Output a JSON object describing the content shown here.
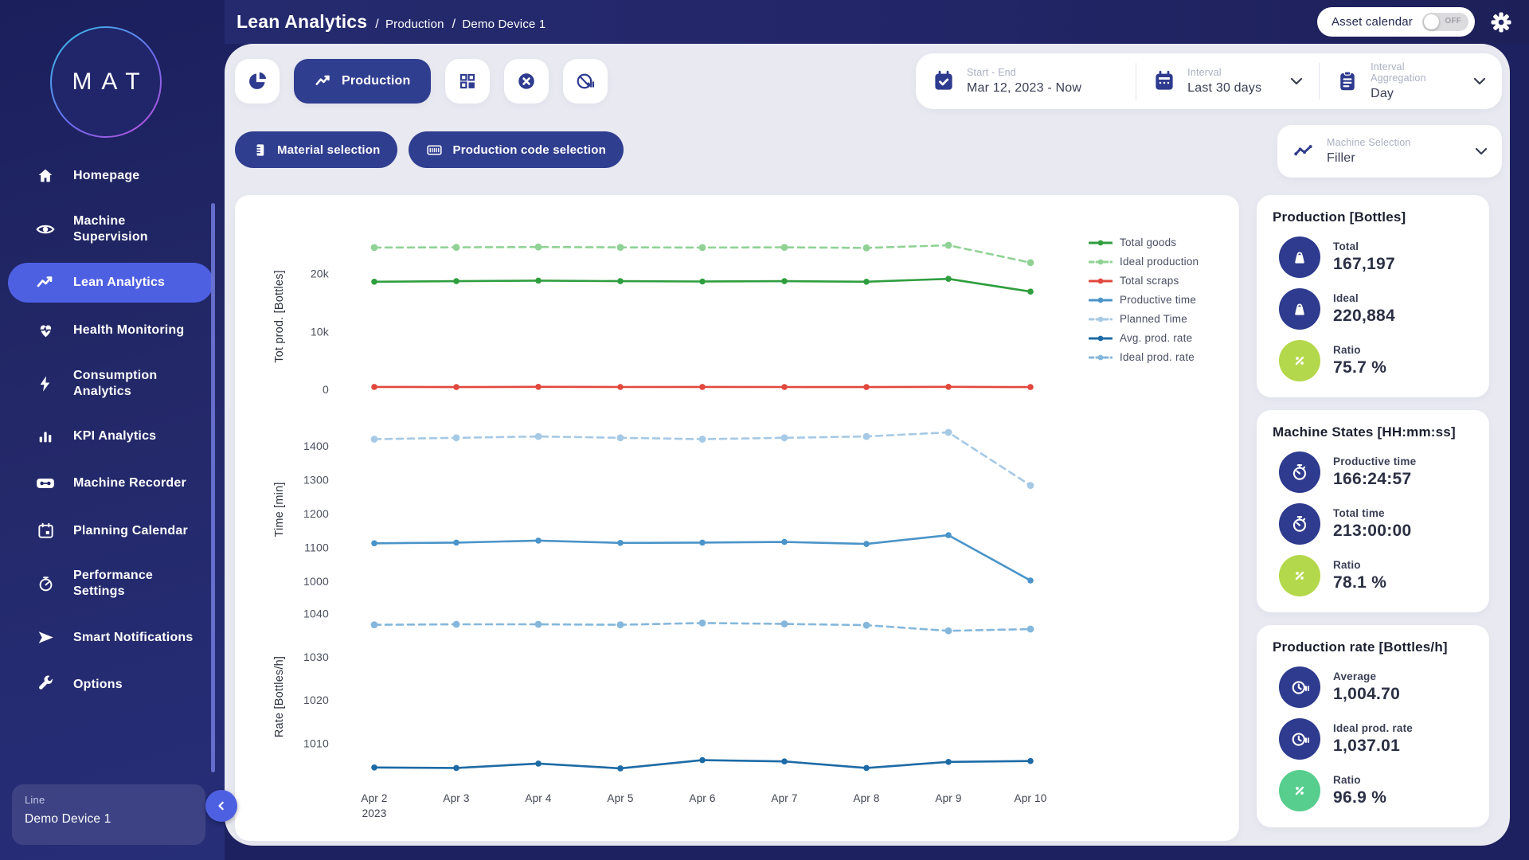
{
  "topbar": {
    "title": "Lean Analytics",
    "breadcrumb": {
      "level1": "Production",
      "level2": "Demo Device 1",
      "separator": "/"
    },
    "asset_calendar": {
      "label": "Asset calendar",
      "state": "OFF"
    }
  },
  "toolbar": {
    "production_label": "Production"
  },
  "filters": {
    "start_end": {
      "label": "Start - End",
      "value": "Mar 12, 2023 - Now"
    },
    "interval": {
      "label": "Interval",
      "value": "Last 30 days"
    },
    "aggregation": {
      "label": "Interval Aggregation",
      "value": "Day"
    },
    "material_label": "Material selection",
    "production_code_label": "Production code selection",
    "machine_selection": {
      "label": "Machine Selection",
      "value": "Filler"
    }
  },
  "sidebar": {
    "brand": "MAT",
    "items": [
      {
        "label": "Homepage",
        "active": false
      },
      {
        "label": "Machine Supervision",
        "active": false
      },
      {
        "label": "Lean Analytics",
        "active": true
      },
      {
        "label": "Health Monitoring",
        "active": false
      },
      {
        "label": "Consumption Analytics",
        "active": false
      },
      {
        "label": "KPI Analytics",
        "active": false
      },
      {
        "label": "Machine Recorder",
        "active": false
      },
      {
        "label": "Planning Calendar",
        "active": false
      },
      {
        "label": "Performance Settings",
        "active": false
      },
      {
        "label": "Smart Notifications",
        "active": false
      },
      {
        "label": "Options",
        "active": false
      }
    ],
    "device": {
      "label": "Line",
      "value": "Demo Device 1"
    }
  },
  "summary_cards": [
    {
      "title": "Production [Bottles]",
      "rows": [
        {
          "icon": "weight",
          "label": "Total",
          "value": "167,197",
          "circle": "navy"
        },
        {
          "icon": "weight",
          "label": "Ideal",
          "value": "220,884",
          "circle": "navy"
        },
        {
          "icon": "percent",
          "label": "Ratio",
          "value": "75.7 %",
          "circle": "lime"
        }
      ]
    },
    {
      "title": "Machine States [HH:mm:ss]",
      "rows": [
        {
          "icon": "stopwatch",
          "label": "Productive time",
          "value": "166:24:57",
          "circle": "navy"
        },
        {
          "icon": "stopwatch",
          "label": "Total time",
          "value": "213:00:00",
          "circle": "navy"
        },
        {
          "icon": "percent",
          "label": "Ratio",
          "value": "78.1 %",
          "circle": "lime"
        }
      ]
    },
    {
      "title": "Production rate [Bottles/h]",
      "rows": [
        {
          "icon": "clock-pause",
          "label": "Average",
          "value": "1,004.70",
          "circle": "navy"
        },
        {
          "icon": "clock-pause",
          "label": "Ideal prod. rate",
          "value": "1,037.01",
          "circle": "navy"
        },
        {
          "icon": "percent",
          "label": "Ratio",
          "value": "96.9 %",
          "circle": "teal"
        }
      ]
    }
  ],
  "colors": {
    "navy": "#2e3b8e",
    "accent": "#4e60e2",
    "lime": "#b4d84b",
    "teal": "#57cd8e",
    "content_bg": "#e9eaf1"
  },
  "chart_data": {
    "type": "line",
    "x_labels": [
      "Apr 2",
      "Apr 3",
      "Apr 4",
      "Apr 5",
      "Apr 6",
      "Apr 7",
      "Apr 8",
      "Apr 9",
      "Apr 10"
    ],
    "x_sublabel": "2023",
    "grid": false,
    "legend_position": "top-right",
    "legend": [
      "Total goods",
      "Ideal production",
      "Total scraps",
      "Productive time",
      "Planned Time",
      "Avg. prod. rate",
      "Ideal prod. rate"
    ],
    "panels": [
      {
        "ylabel": "Tot prod. [Bottles]",
        "ymin": -800,
        "ymax": 26000,
        "ticks": [
          {
            "value": 20000,
            "label": "20k"
          },
          {
            "value": 10000,
            "label": "10k"
          },
          {
            "value": 0,
            "label": "0"
          }
        ],
        "series": [
          {
            "name": "Ideal production",
            "color": "#90d295",
            "dashed": true,
            "values": [
              24500,
              24550,
              24600,
              24550,
              24500,
              24550,
              24450,
              24900,
              21900
            ]
          },
          {
            "name": "Total goods",
            "color": "#2f9e3f",
            "dashed": false,
            "values": [
              18600,
              18700,
              18800,
              18700,
              18650,
              18700,
              18600,
              19100,
              16900
            ]
          },
          {
            "name": "Total scraps",
            "color": "#e2483d",
            "dashed": false,
            "values": [
              450,
              430,
              460,
              440,
              450,
              440,
              430,
              470,
              420
            ]
          }
        ]
      },
      {
        "ylabel": "Time [min]",
        "ymin": 976,
        "ymax": 1447,
        "ticks": [
          {
            "value": 1400,
            "label": "1400"
          },
          {
            "value": 1300,
            "label": "1300"
          },
          {
            "value": 1200,
            "label": "1200"
          },
          {
            "value": 1100,
            "label": "1100"
          },
          {
            "value": 1000,
            "label": "1000"
          }
        ],
        "series": [
          {
            "name": "Planned Time",
            "color": "#a6c9e5",
            "dashed": true,
            "values": [
              1420,
              1424,
              1428,
              1424,
              1420,
              1424,
              1428,
              1440,
              1283
            ]
          },
          {
            "name": "Productive time",
            "color": "#4a94c9",
            "dashed": false,
            "values": [
              1112,
              1114,
              1120,
              1113,
              1114,
              1116,
              1110,
              1136,
              1002
            ]
          }
        ]
      },
      {
        "ylabel": "Rate [Bottles/h]",
        "ymin": 1000.5,
        "ymax": 1041,
        "ticks": [
          {
            "value": 1040,
            "label": "1040"
          },
          {
            "value": 1030,
            "label": "1030"
          },
          {
            "value": 1020,
            "label": "1020"
          },
          {
            "value": 1010,
            "label": "1010"
          }
        ],
        "series": [
          {
            "name": "Ideal prod. rate",
            "color": "#85b7dc",
            "dashed": true,
            "values": [
              1037.4,
              1037.5,
              1037.5,
              1037.4,
              1037.8,
              1037.6,
              1037.3,
              1036.0,
              1036.4
            ]
          },
          {
            "name": "Avg. prod. rate",
            "color": "#1d6ba6",
            "dashed": false,
            "values": [
              1004.4,
              1004.3,
              1005.3,
              1004.2,
              1006.1,
              1005.8,
              1004.3,
              1005.7,
              1005.9
            ]
          }
        ]
      }
    ]
  }
}
